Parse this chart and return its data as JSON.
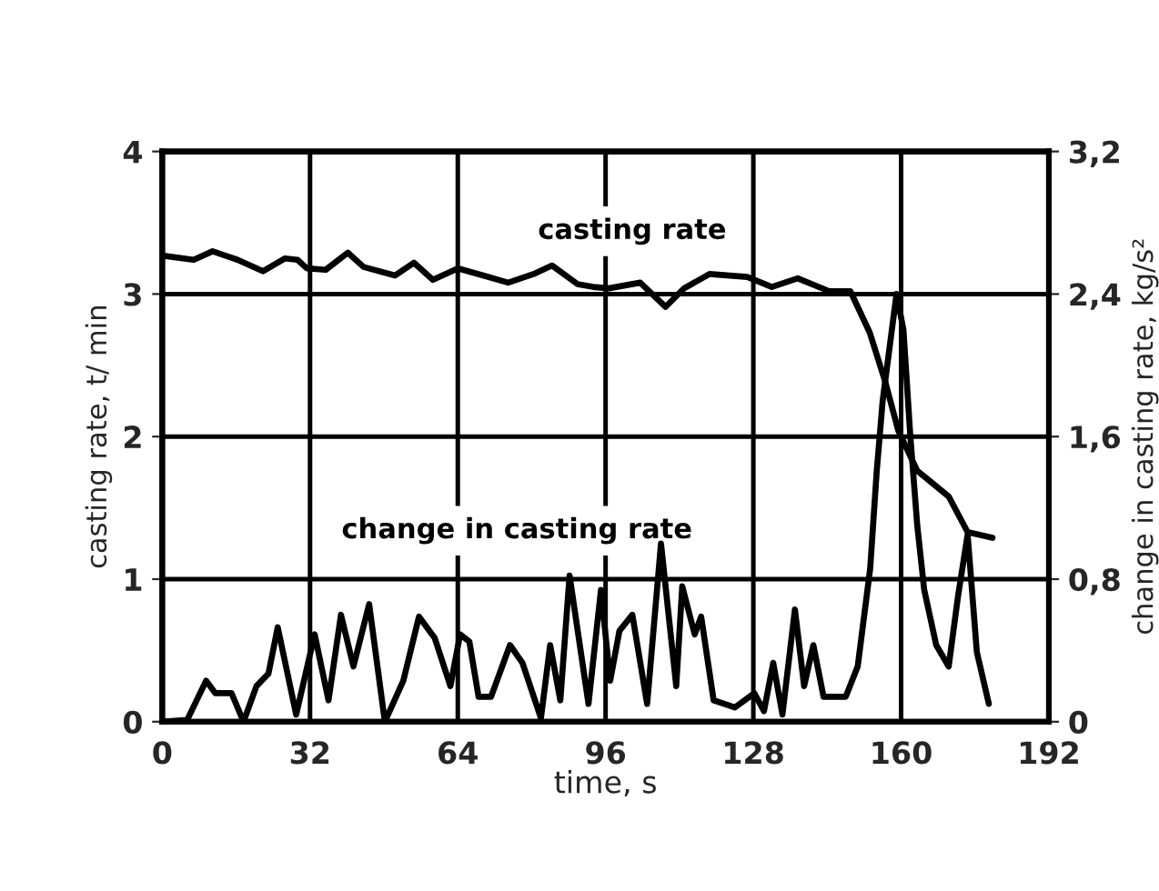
{
  "chart_data": {
    "type": "line",
    "xlabel": "time, s",
    "ylabel": "casting rate, t/ min",
    "y2label": "change in casting rate, kg/s²",
    "xlim": [
      0,
      192
    ],
    "xticks": [
      0,
      32,
      64,
      96,
      128,
      160,
      192
    ],
    "ylim": [
      0,
      4
    ],
    "yticks": [
      0,
      1,
      2,
      3,
      4
    ],
    "y2lim": [
      0,
      3.2
    ],
    "y2ticks": [
      0,
      {
        "value": 0.8,
        "label": "0,8"
      },
      {
        "value": 1.6,
        "label": "1,6"
      },
      {
        "value": 2.4,
        "label": "2,4"
      },
      {
        "value": 3.2,
        "label": "3,2"
      }
    ],
    "grid": true,
    "legend": false,
    "marker": "none",
    "line_style": "solid",
    "series": [
      {
        "name": "casting rate",
        "color": "#000000",
        "x": [
          0,
          6.8,
          10.9,
          16.3,
          21.8,
          26.6,
          29.3,
          31.3,
          35.4,
          40.2,
          43.6,
          50.4,
          54.5,
          58.6,
          64,
          69.5,
          74.9,
          80.4,
          84.4,
          89.9,
          93.3,
          96.7,
          103.5,
          109,
          113,
          118.5,
          126.7,
          132,
          137.6,
          144.4,
          149,
          153.2,
          156.6,
          159.4,
          163.5,
          170.3,
          174.4,
          179.8
        ],
        "values": [
          3.27,
          3.24,
          3.3,
          3.24,
          3.16,
          3.25,
          3.24,
          3.18,
          3.17,
          3.29,
          3.19,
          3.13,
          3.22,
          3.1,
          3.18,
          3.13,
          3.08,
          3.14,
          3.2,
          3.07,
          3.05,
          3.04,
          3.08,
          2.91,
          3.04,
          3.14,
          3.12,
          3.05,
          3.11,
          3.02,
          3.02,
          2.73,
          2.38,
          2.04,
          1.76,
          1.58,
          1.33,
          1.29
        ]
      },
      {
        "name": "change in casting rate",
        "color": "#000000",
        "axis": "y2",
        "x": [
          0,
          5.4,
          9.5,
          11.5,
          15,
          17.6,
          20.4,
          23,
          25,
          29,
          33,
          36,
          38.7,
          41.4,
          44.8,
          48.2,
          52.2,
          55.6,
          59,
          62.4,
          64.5,
          66.5,
          68.5,
          71.2,
          75.3,
          78,
          82,
          84,
          86.2,
          88.2,
          92.3,
          95,
          97,
          99,
          101.8,
          105,
          108,
          111.3,
          112.6,
          115.3,
          116.7,
          119.4,
          124,
          128.2,
          130.3,
          132.3,
          134.3,
          137,
          139,
          141,
          143.2,
          148,
          150.6,
          153.3,
          154.7,
          156,
          159,
          160.5,
          162,
          163.5,
          165,
          167.6,
          170.3,
          172.3,
          174.4,
          176.4,
          179
        ],
        "values": [
          0,
          0.01,
          0.23,
          0.16,
          0.16,
          0,
          0.2,
          0.27,
          0.53,
          0.04,
          0.49,
          0.12,
          0.6,
          0.31,
          0.66,
          0,
          0.23,
          0.59,
          0.47,
          0.2,
          0.49,
          0.45,
          0.14,
          0.14,
          0.43,
          0.33,
          0.02,
          0.43,
          0.12,
          0.82,
          0.1,
          0.74,
          0.23,
          0.51,
          0.6,
          0.1,
          1.0,
          0.2,
          0.76,
          0.49,
          0.59,
          0.12,
          0.08,
          0.16,
          0.06,
          0.33,
          0.04,
          0.63,
          0.2,
          0.43,
          0.14,
          0.14,
          0.31,
          0.86,
          1.4,
          1.8,
          2.4,
          2.2,
          1.6,
          1.1,
          0.74,
          0.43,
          0.31,
          0.7,
          1.05,
          0.39,
          0.1
        ]
      }
    ]
  }
}
